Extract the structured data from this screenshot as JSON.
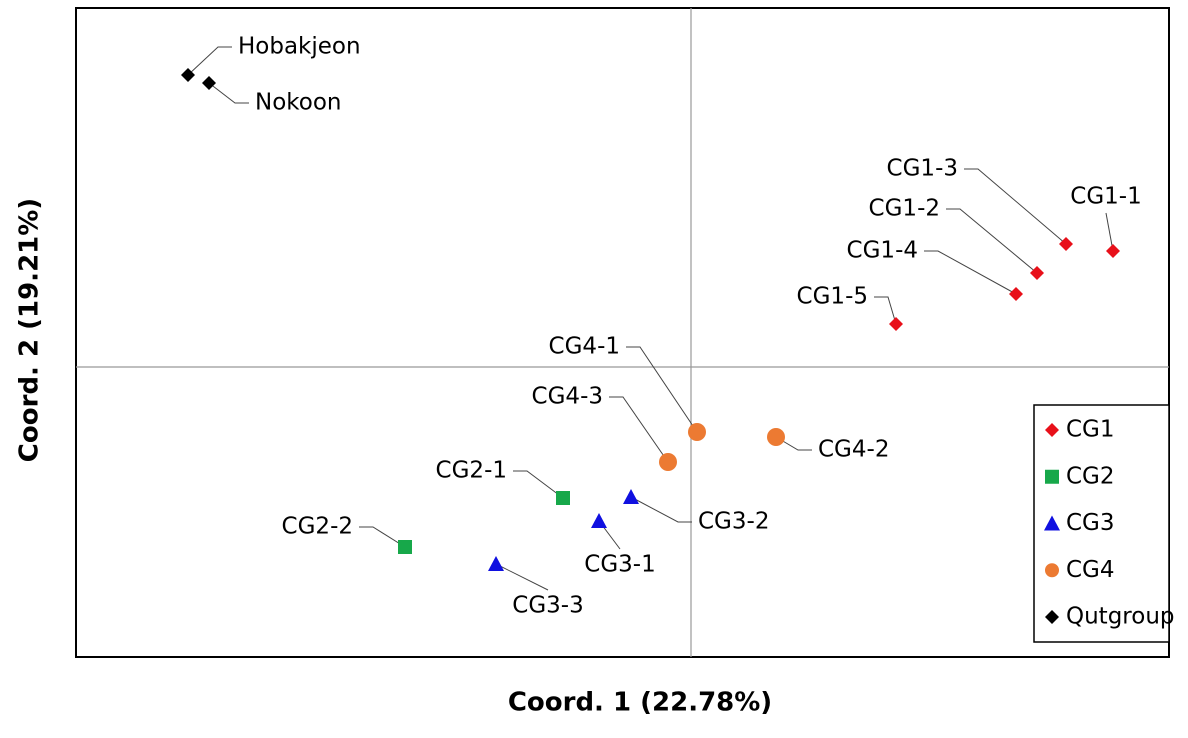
{
  "chart_data": {
    "type": "scatter",
    "x_label": "Coord. 1 (22.78%)",
    "y_label": "Coord. 2 (19.21%)",
    "xlim": [
      -6.15,
      4.78
    ],
    "ylim": [
      -2.9,
      3.59
    ],
    "zero_lines": true,
    "legend": "lower right",
    "series": [
      {
        "name": "CG1",
        "color": "#e8101a",
        "marker": "diamond",
        "labels": [
          "CG1-1",
          "CG1-3",
          "CG1-2",
          "CG1-4",
          "CG1-5"
        ],
        "x": [
          4.22,
          3.75,
          3.46,
          3.25,
          2.05
        ],
        "y": [
          1.16,
          1.23,
          0.94,
          0.73,
          0.43
        ]
      },
      {
        "name": "CG2",
        "color": "#17a84a",
        "marker": "square",
        "labels": [
          "CG2-1",
          "CG2-2"
        ],
        "x": [
          -1.28,
          -2.86
        ],
        "y": [
          -1.31,
          -1.8
        ]
      },
      {
        "name": "CG3",
        "color": "#1010e0",
        "marker": "triangle",
        "labels": [
          "CG3-2",
          "CG3-1",
          "CG3-3"
        ],
        "x": [
          -0.6,
          -0.92,
          -1.95
        ],
        "y": [
          -1.3,
          -1.54,
          -1.97
        ]
      },
      {
        "name": "CG4",
        "color": "#ec7a32",
        "marker": "circle",
        "labels": [
          "CG4-1",
          "CG4-2",
          "CG4-3"
        ],
        "x": [
          0.06,
          0.85,
          -0.23
        ],
        "y": [
          -0.65,
          -0.7,
          -0.95
        ]
      },
      {
        "name": "Qutgroup",
        "color": "#000000",
        "marker": "diamond",
        "labels": [
          "Hobakjeon",
          "Nokoon"
        ],
        "x": [
          -5.03,
          -4.82
        ],
        "y": [
          2.92,
          2.84
        ]
      }
    ]
  }
}
